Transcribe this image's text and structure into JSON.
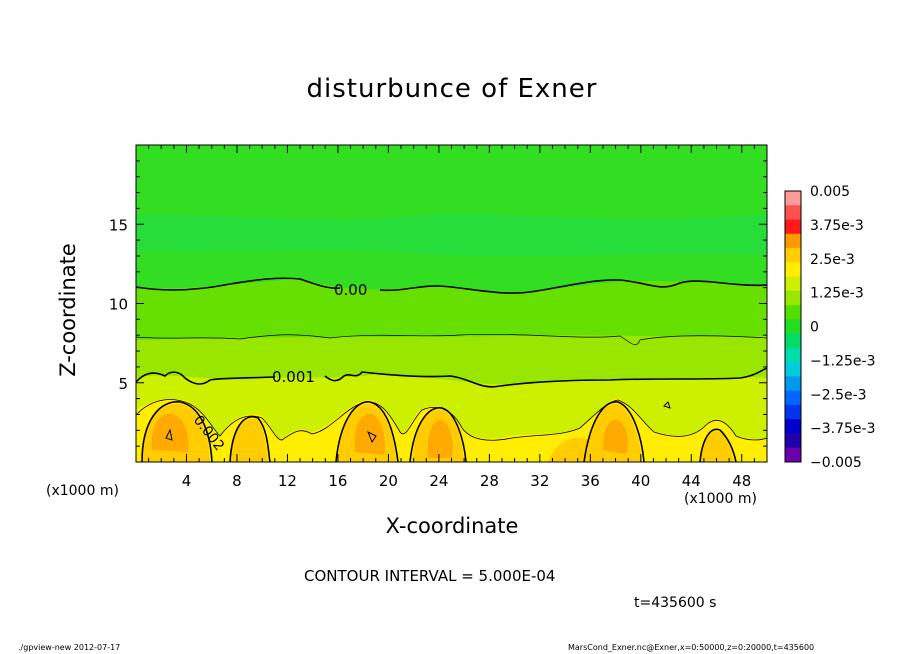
{
  "chart_data": {
    "type": "heatmap",
    "title": "disturbunce of Exner",
    "xlabel": "X-coordinate",
    "ylabel": "Z-coordinate",
    "x_unit_label": "(x1000 m)",
    "xlim": [
      0,
      50
    ],
    "ylim": [
      0,
      20
    ],
    "x_ticks": [
      4,
      8,
      12,
      16,
      20,
      24,
      28,
      32,
      36,
      40,
      44,
      48
    ],
    "y_ticks": [
      5,
      10,
      15
    ],
    "colorbar": {
      "labels": [
        "0.005",
        "3.75e-3",
        "2.5e-3",
        "1.25e-3",
        "0",
        "−1.25e-3",
        "−2.5e-3",
        "−3.75e-3",
        "−0.005"
      ],
      "colors": [
        "#ff9a9a",
        "#ff5050",
        "#ff1a1a",
        "#ff9900",
        "#ffcc00",
        "#ffee00",
        "#ccf000",
        "#99e600",
        "#55dd00",
        "#22dd22",
        "#00dd66",
        "#00ddaa",
        "#00ccdd",
        "#0099ee",
        "#0066ff",
        "#0033ee",
        "#0000cc",
        "#2200aa",
        "#6a00aa"
      ]
    },
    "contour_labels": [
      "0.00",
      "0.001",
      "0.002"
    ],
    "contour_interval_label": "CONTOUR INTERVAL = 5.000E-04",
    "time_label": "t=435600 s"
  },
  "footer": {
    "left": "./gpview-new   2012-07-17",
    "right": "MarsCond_Exner.nc@Exner,x=0:50000,z=0:20000,t=435600"
  }
}
